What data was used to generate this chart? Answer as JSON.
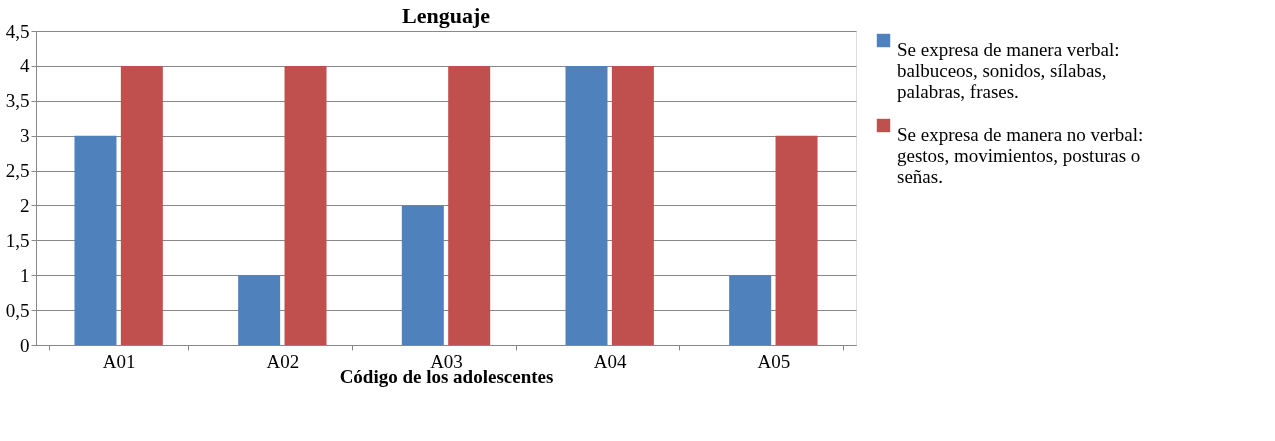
{
  "chart_data": {
    "type": "bar",
    "title": "Lenguaje",
    "xlabel": "Código de los adolescentes",
    "categories": [
      "A01",
      "A02",
      "A03",
      "A04",
      "A05"
    ],
    "series": [
      {
        "name": "Se expresa de manera verbal: balbuceos, sonidos, sílabas, palabras, frases.",
        "color": "#4f81bd",
        "values": [
          3,
          1,
          2,
          4,
          1
        ]
      },
      {
        "name": "Se expresa de manera no verbal: gestos, movimientos, posturas o señas.",
        "color": "#c0504d",
        "values": [
          4,
          4,
          4,
          4,
          3
        ]
      }
    ],
    "ylim": [
      0,
      4.5
    ],
    "yticks": [
      0,
      {
        "value": 0.5,
        "label": "0,5"
      },
      1,
      {
        "value": 1.5,
        "label": "1,5"
      },
      2,
      {
        "value": 2.5,
        "label": "2,5"
      },
      3,
      {
        "value": 3.5,
        "label": "3,5"
      },
      4,
      {
        "value": 4.5,
        "label": "4,5"
      }
    ],
    "grid": "y",
    "legend": "right"
  }
}
